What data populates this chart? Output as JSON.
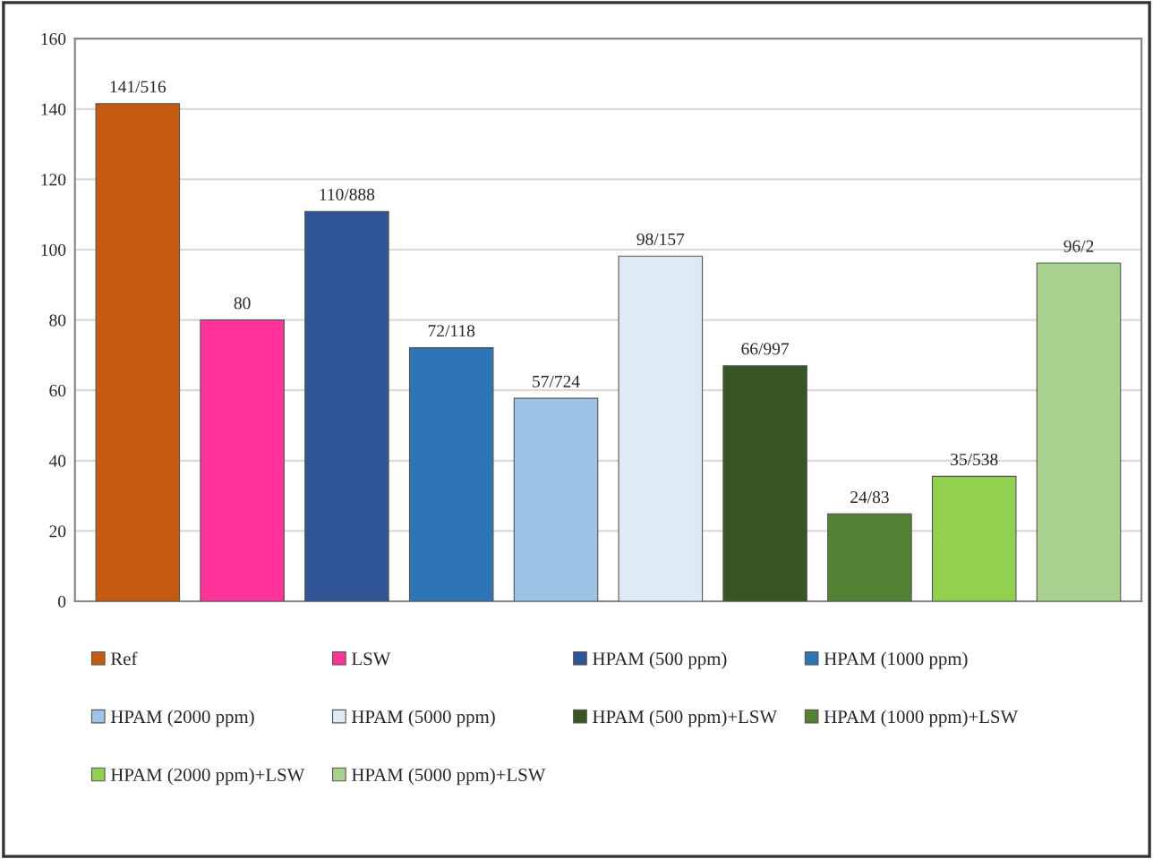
{
  "chart_data": {
    "type": "bar",
    "categories": [
      null,
      null,
      null,
      null,
      null,
      null,
      null,
      null,
      null,
      null
    ],
    "series": [
      {
        "name": "Ref",
        "color": "#c55a11",
        "values": [
          141.516,
          null,
          null,
          null,
          null,
          null,
          null,
          null,
          null,
          null
        ],
        "value_labels": [
          "141/516",
          null,
          null,
          null,
          null,
          null,
          null,
          null,
          null,
          null
        ]
      },
      {
        "name": "LSW",
        "color": "#ff3399",
        "values": [
          null,
          80,
          null,
          null,
          null,
          null,
          null,
          null,
          null,
          null
        ],
        "value_labels": [
          null,
          "80",
          null,
          null,
          null,
          null,
          null,
          null,
          null,
          null
        ]
      },
      {
        "name": "HPAM (500 ppm)",
        "color": "#2f5597",
        "values": [
          null,
          null,
          110.888,
          null,
          null,
          null,
          null,
          null,
          null,
          null
        ],
        "value_labels": [
          null,
          null,
          "110/888",
          null,
          null,
          null,
          null,
          null,
          null,
          null
        ]
      },
      {
        "name": "HPAM (1000 ppm)",
        "color": "#2e75b6",
        "values": [
          null,
          null,
          null,
          72.118,
          null,
          null,
          null,
          null,
          null,
          null
        ],
        "value_labels": [
          null,
          null,
          null,
          "72/118",
          null,
          null,
          null,
          null,
          null,
          null
        ]
      },
      {
        "name": "HPAM (2000 ppm)",
        "color": "#9dc3e6",
        "values": [
          null,
          null,
          null,
          null,
          57.724,
          null,
          null,
          null,
          null,
          null
        ],
        "value_labels": [
          null,
          null,
          null,
          null,
          "57/724",
          null,
          null,
          null,
          null,
          null
        ]
      },
      {
        "name": "HPAM (5000 ppm)",
        "color": "#deebf7",
        "values": [
          null,
          null,
          null,
          null,
          null,
          98.157,
          null,
          null,
          null,
          null
        ],
        "value_labels": [
          null,
          null,
          null,
          null,
          null,
          "98/157",
          null,
          null,
          null,
          null
        ]
      },
      {
        "name": "HPAM (500 ppm)+LSW",
        "color": "#375623",
        "values": [
          null,
          null,
          null,
          null,
          null,
          null,
          66.997,
          null,
          null,
          null
        ],
        "value_labels": [
          null,
          null,
          null,
          null,
          null,
          null,
          "66/997",
          null,
          null,
          null
        ]
      },
      {
        "name": "HPAM (1000 ppm)+LSW",
        "color": "#548235",
        "values": [
          null,
          null,
          null,
          null,
          null,
          null,
          null,
          24.83,
          null,
          null
        ],
        "value_labels": [
          null,
          null,
          null,
          null,
          null,
          null,
          null,
          "24/83",
          null,
          null
        ]
      },
      {
        "name": "HPAM (2000 ppm)+LSW",
        "color": "#92d050",
        "values": [
          null,
          null,
          null,
          null,
          null,
          null,
          null,
          null,
          35.538,
          null
        ],
        "value_labels": [
          null,
          null,
          null,
          null,
          null,
          null,
          null,
          null,
          "35/538",
          null
        ]
      },
      {
        "name": "HPAM (5000 ppm)+LSW",
        "color": "#a9d18e",
        "values": [
          null,
          null,
          null,
          null,
          null,
          null,
          null,
          null,
          null,
          96.2
        ],
        "value_labels": [
          null,
          null,
          null,
          null,
          null,
          null,
          null,
          null,
          null,
          "96/2"
        ]
      }
    ],
    "ylim": [
      0,
      160
    ],
    "yticks": [
      0,
      20,
      40,
      60,
      80,
      100,
      120,
      140,
      160
    ],
    "grid": "y",
    "legend": "bottom",
    "tick_labels": "y"
  }
}
